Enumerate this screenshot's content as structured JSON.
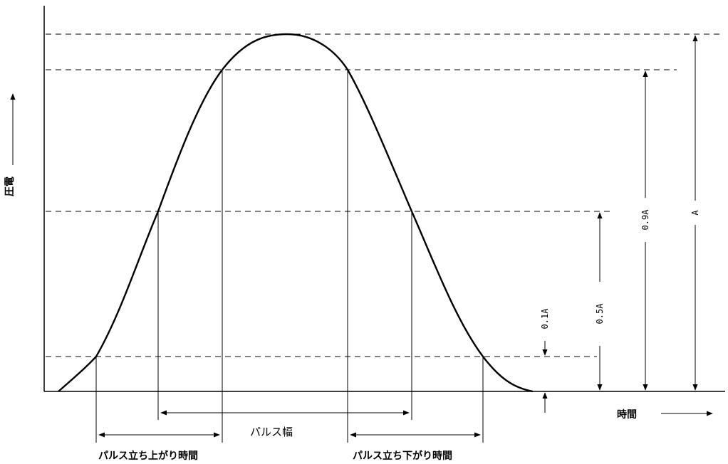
{
  "axes": {
    "y_label": "圧電",
    "x_label": "時間"
  },
  "levels": {
    "full": "A",
    "ninety": "0.9A",
    "fifty": "0.5A",
    "ten": "0.1A"
  },
  "widths": {
    "pulse_width": "パルス幅",
    "rise_time": "パルス立ち上がり時間",
    "fall_time": "パルス立ち下がり時間"
  }
}
